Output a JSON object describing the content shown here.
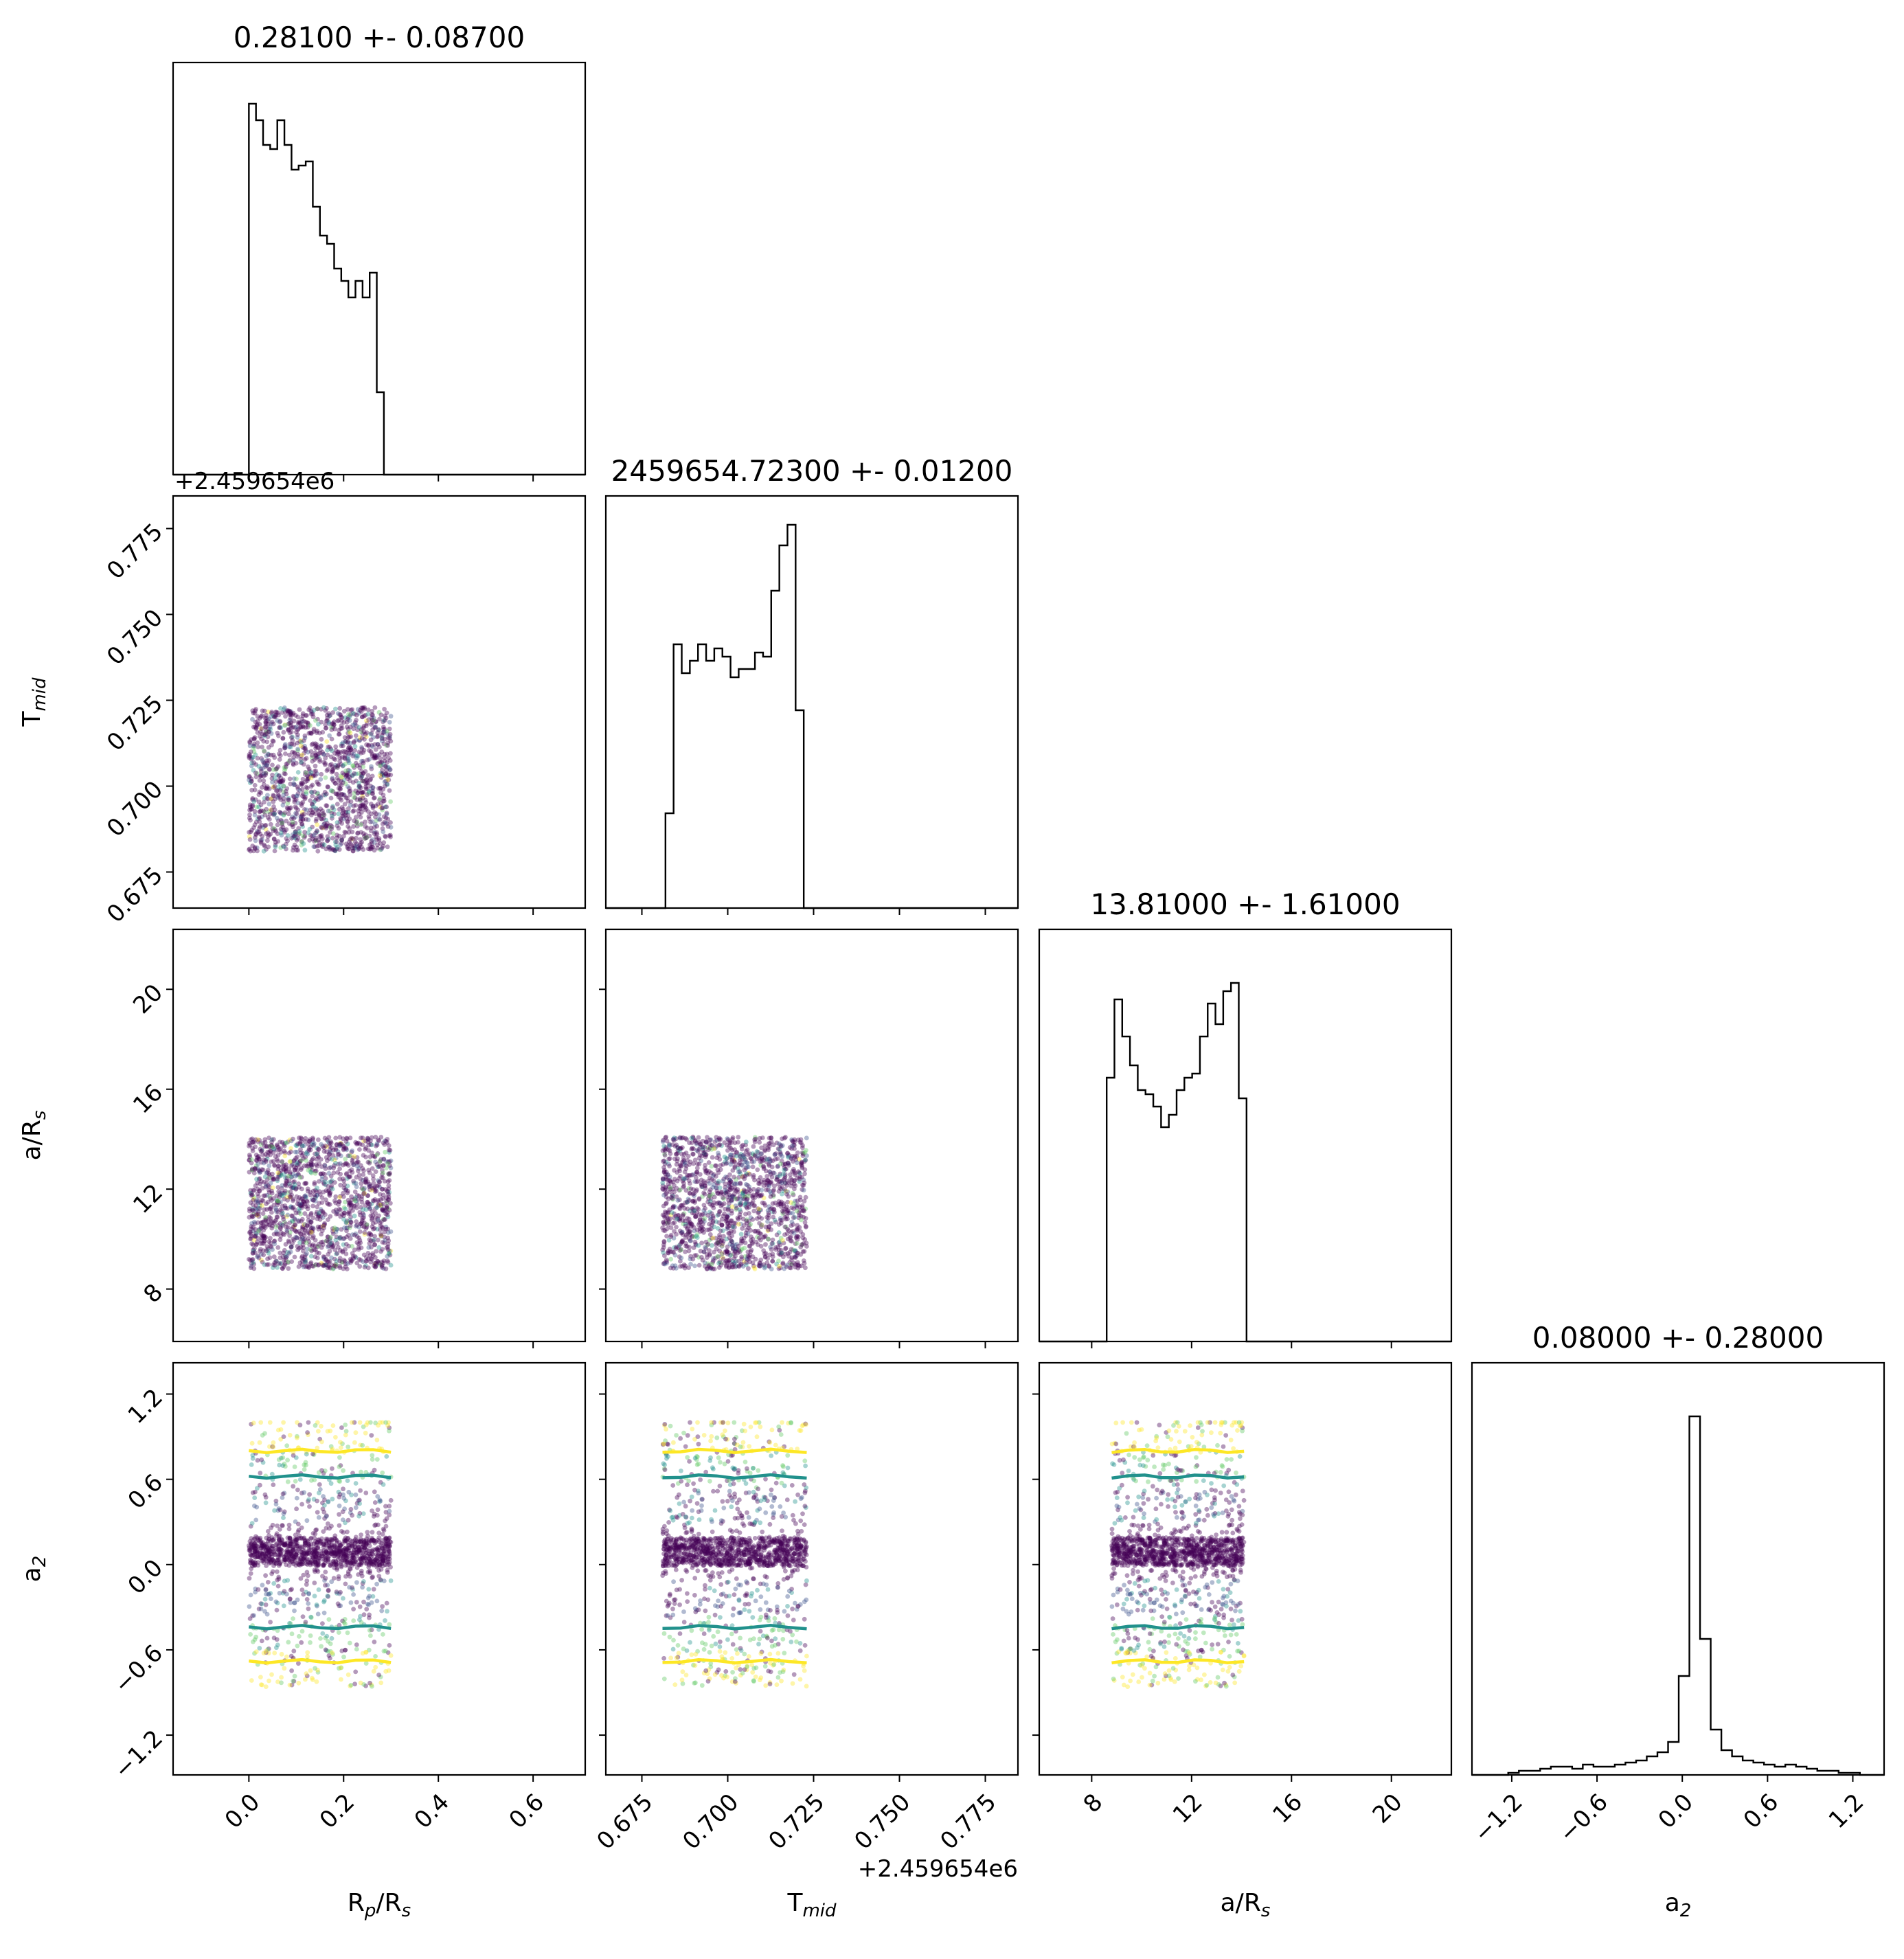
{
  "figure": {
    "type": "corner-plot",
    "background": "#ffffff",
    "colormap": [
      "#440154",
      "#3b528b",
      "#21918c",
      "#5ec962",
      "#fde725"
    ],
    "offset_label": "+2.459654e6"
  },
  "chart_data": {
    "type": "corner",
    "parameters": [
      {
        "key": "rp",
        "label_base": "R",
        "label_sub": "p",
        "label_tail": "/R",
        "label_sub2": "s",
        "title": "0.28100 +- 0.08700",
        "range": [
          -0.16,
          0.71
        ],
        "ticks": [
          0.0,
          0.2,
          0.4,
          0.6
        ],
        "tick_labels": [
          "0.0",
          "0.2",
          "0.4",
          "0.6"
        ],
        "uniform": [
          0.0,
          0.3
        ],
        "hist_edges": [
          0.0,
          0.3
        ],
        "hist": [
          0.9,
          0.86,
          0.8,
          0.79,
          0.86,
          0.8,
          0.74,
          0.75,
          0.76,
          0.65,
          0.58,
          0.56,
          0.5,
          0.47,
          0.43,
          0.47,
          0.43,
          0.49,
          0.2,
          0.0
        ]
      },
      {
        "key": "tmid",
        "label_base": "T",
        "label_sub": "mid",
        "label_tail": "",
        "label_sub2": "",
        "title": "2459654.72300 +- 0.01200",
        "range": [
          0.6645,
          0.7845
        ],
        "ticks": [
          0.675,
          0.7,
          0.725,
          0.75,
          0.775
        ],
        "tick_labels": [
          "0.675",
          "0.700",
          "0.725",
          "0.750",
          "0.775"
        ],
        "uniform": [
          0.681,
          0.723
        ],
        "hist_edges": [
          0.6795,
          0.7245
        ],
        "hist": [
          0.0,
          0.23,
          0.64,
          0.57,
          0.6,
          0.64,
          0.6,
          0.63,
          0.61,
          0.56,
          0.58,
          0.58,
          0.62,
          0.61,
          0.77,
          0.88,
          0.93,
          0.48,
          0.0
        ]
      },
      {
        "key": "ars",
        "label_base": "a/R",
        "label_sub": "s",
        "label_tail": "",
        "label_sub2": "",
        "title": "13.81000 +- 1.61000",
        "range": [
          5.9,
          22.4
        ],
        "ticks": [
          8,
          12,
          16,
          20
        ],
        "tick_labels": [
          "8",
          "12",
          "16",
          "20"
        ],
        "uniform": [
          8.8,
          14.1
        ],
        "hist_edges": [
          8.6,
          14.2
        ],
        "hist": [
          0.64,
          0.83,
          0.74,
          0.67,
          0.61,
          0.6,
          0.57,
          0.52,
          0.55,
          0.61,
          0.64,
          0.65,
          0.74,
          0.82,
          0.77,
          0.85,
          0.87,
          0.59
        ]
      },
      {
        "key": "a2",
        "label_base": "a",
        "label_sub": "2",
        "label_tail": "",
        "label_sub2": "",
        "title": "0.08000 +- 0.28000",
        "range": [
          -1.48,
          1.42
        ],
        "ticks": [
          -1.2,
          -0.6,
          0.0,
          0.6,
          1.2
        ],
        "tick_labels": [
          "−1.2",
          "−0.6",
          "0.0",
          "0.6",
          "1.2"
        ],
        "hist_edges": [
          -1.3,
          1.4
        ],
        "hist": [
          0.0,
          0.005,
          0.01,
          0.01,
          0.015,
          0.02,
          0.02,
          0.015,
          0.025,
          0.02,
          0.02,
          0.025,
          0.03,
          0.035,
          0.045,
          0.055,
          0.08,
          0.24,
          0.87,
          0.33,
          0.11,
          0.06,
          0.045,
          0.035,
          0.03,
          0.025,
          0.02,
          0.025,
          0.02,
          0.015,
          0.01,
          0.01,
          0.005,
          0.005,
          0.0,
          0.0
        ]
      }
    ],
    "a2_samples": {
      "core_center": 0.09,
      "core_halfwidth": 0.1,
      "spread_min": -1.0,
      "spread_max": 1.0
    },
    "a2_contours": [
      {
        "level": "inner",
        "color": "#21918c",
        "upper": 0.62,
        "lower": -0.44
      },
      {
        "level": "outer",
        "color": "#fde725",
        "upper": 0.8,
        "lower": -0.68
      }
    ]
  }
}
